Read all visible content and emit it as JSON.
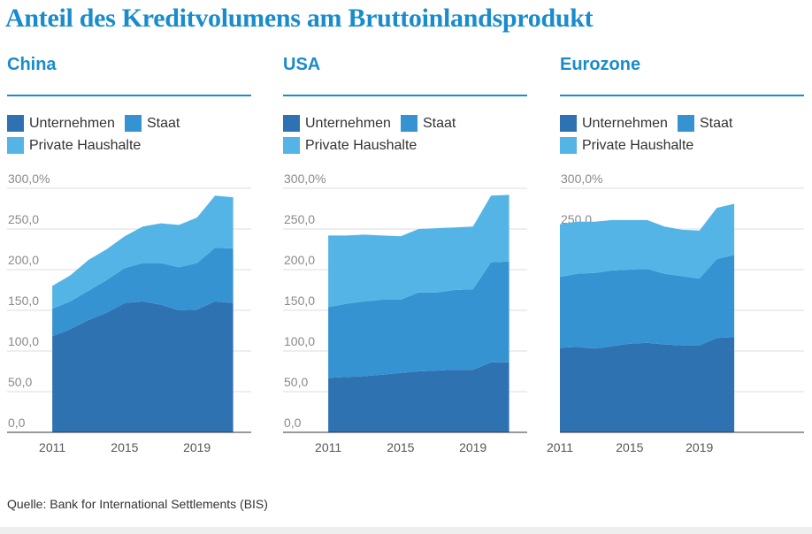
{
  "title": "Anteil des Kreditvolumens am Bruttoinlandsprodukt",
  "source": "Quelle: Bank for International Settlements (BIS)",
  "colors": {
    "title": "#1a8ccc",
    "unternehmen": "#2f72b2",
    "staat": "#3593d2",
    "private_haushalte": "#55b4e6",
    "grid": "#dddddd",
    "axis": "#333333"
  },
  "legend": {
    "unternehmen": "Unternehmen",
    "staat": "Staat",
    "private_haushalte": "Private Haushalte"
  },
  "chart_data": [
    {
      "type": "area",
      "stacked": true,
      "title": "China",
      "x": [
        2011,
        2012,
        2013,
        2014,
        2015,
        2016,
        2017,
        2018,
        2019,
        2020,
        2021
      ],
      "x_ticks": [
        2011,
        2015,
        2019
      ],
      "x_tick_labels": [
        "2011",
        "2015",
        "2019"
      ],
      "xlim": [
        2008.5,
        2022
      ],
      "ylim": [
        0,
        300
      ],
      "y_ticks": [
        0,
        50,
        100,
        150,
        200,
        250,
        300
      ],
      "y_tick_labels": [
        "0,0",
        "50,0",
        "100,0",
        "150,0",
        "200,0",
        "250,0",
        "300,0%"
      ],
      "grid": true,
      "legend_position": "top-left",
      "series": [
        {
          "name": "Unternehmen",
          "values": [
            118,
            127,
            138,
            147,
            159,
            161,
            157,
            150,
            151,
            161,
            159
          ]
        },
        {
          "name": "Staat",
          "values": [
            34,
            34,
            36,
            40,
            43,
            47,
            51,
            53,
            57,
            66,
            67
          ]
        },
        {
          "name": "Private Haushalte",
          "values": [
            28,
            32,
            38,
            38,
            39,
            45,
            49,
            52,
            56,
            64,
            63
          ]
        }
      ]
    },
    {
      "type": "area",
      "stacked": true,
      "title": "USA",
      "x": [
        2011,
        2012,
        2013,
        2014,
        2015,
        2016,
        2017,
        2018,
        2019,
        2020,
        2021
      ],
      "x_ticks": [
        2011,
        2015,
        2019
      ],
      "x_tick_labels": [
        "2011",
        "2015",
        "2019"
      ],
      "xlim": [
        2008.5,
        2022
      ],
      "ylim": [
        0,
        300
      ],
      "y_ticks": [
        0,
        50,
        100,
        150,
        200,
        250,
        300
      ],
      "y_tick_labels": [
        "0,0",
        "50,0",
        "100,0",
        "150,0",
        "200,0",
        "250,0",
        "300,0%"
      ],
      "grid": true,
      "legend_position": "top-left",
      "series": [
        {
          "name": "Unternehmen",
          "values": [
            67,
            68,
            69,
            71,
            73,
            75,
            76,
            77,
            77,
            86,
            86
          ]
        },
        {
          "name": "Staat",
          "values": [
            87,
            90,
            92,
            92,
            90,
            97,
            96,
            98,
            99,
            123,
            124
          ]
        },
        {
          "name": "Private Haushalte",
          "values": [
            88,
            84,
            82,
            79,
            78,
            78,
            79,
            77,
            77,
            82,
            82
          ]
        }
      ]
    },
    {
      "type": "area",
      "stacked": true,
      "title": "Eurozone",
      "x": [
        2011,
        2012,
        2013,
        2014,
        2015,
        2016,
        2017,
        2018,
        2019,
        2020,
        2021
      ],
      "x_ticks": [
        2011,
        2015,
        2019
      ],
      "x_tick_labels": [
        "2011",
        "2015",
        "2019"
      ],
      "xlim": [
        2011,
        2025
      ],
      "ylim": [
        0,
        300
      ],
      "y_ticks": [
        0,
        50,
        100,
        150,
        200,
        250,
        300
      ],
      "y_tick_labels": [
        "0,0",
        "50,0",
        "100,0",
        "150,0",
        "200,0",
        "250,0",
        "300,0%"
      ],
      "grid": true,
      "legend_position": "top-left",
      "series": [
        {
          "name": "Unternehmen",
          "values": [
            104,
            105,
            103,
            106,
            109,
            110,
            108,
            107,
            107,
            116,
            117
          ]
        },
        {
          "name": "Staat",
          "values": [
            87,
            90,
            93,
            93,
            91,
            91,
            87,
            85,
            82,
            97,
            101
          ]
        },
        {
          "name": "Private Haushalte",
          "values": [
            65,
            64,
            63,
            62,
            61,
            60,
            58,
            57,
            59,
            63,
            63
          ]
        }
      ]
    }
  ]
}
